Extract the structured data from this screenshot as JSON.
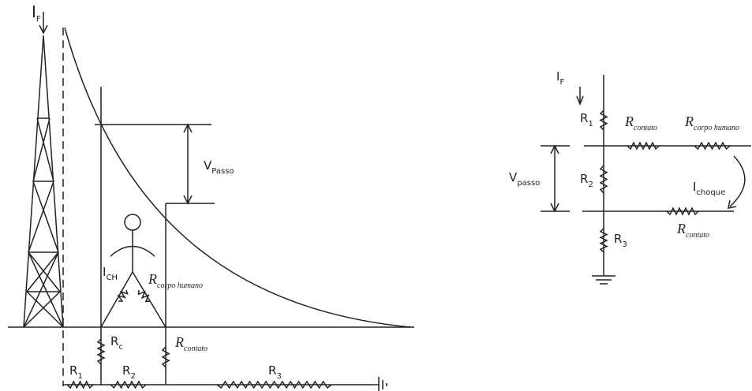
{
  "left_diagram": {
    "fault_current": {
      "main": "I",
      "sub": "F"
    },
    "step_voltage": {
      "main": "V",
      "sub": "Passo"
    },
    "body_current": {
      "main": "I",
      "sub": "CH"
    },
    "body_resistance": {
      "main": "R",
      "sub": "corpo humano"
    },
    "contact_resistance_c": {
      "main": "R",
      "sub": "c"
    },
    "contact_resistance": {
      "main": "R",
      "sub": "contato"
    },
    "r1": {
      "main": "R",
      "sub": "1"
    },
    "r2": {
      "main": "R",
      "sub": "2"
    },
    "r3": {
      "main": "R",
      "sub": "3"
    }
  },
  "right_diagram": {
    "fault_current": {
      "main": "I",
      "sub": "F"
    },
    "r1": {
      "main": "R",
      "sub": "1"
    },
    "contact_resistance_top": {
      "main": "R",
      "sub": "contato"
    },
    "body_resistance": {
      "main": "R",
      "sub": "corpo humano"
    },
    "step_voltage": {
      "main": "V",
      "sub": "passo"
    },
    "r2": {
      "main": "R",
      "sub": "2"
    },
    "shock_current": {
      "main": "I",
      "sub": "choque"
    },
    "contact_resistance_bottom": {
      "main": "R",
      "sub": "contato"
    },
    "r3": {
      "main": "R",
      "sub": "3"
    }
  }
}
